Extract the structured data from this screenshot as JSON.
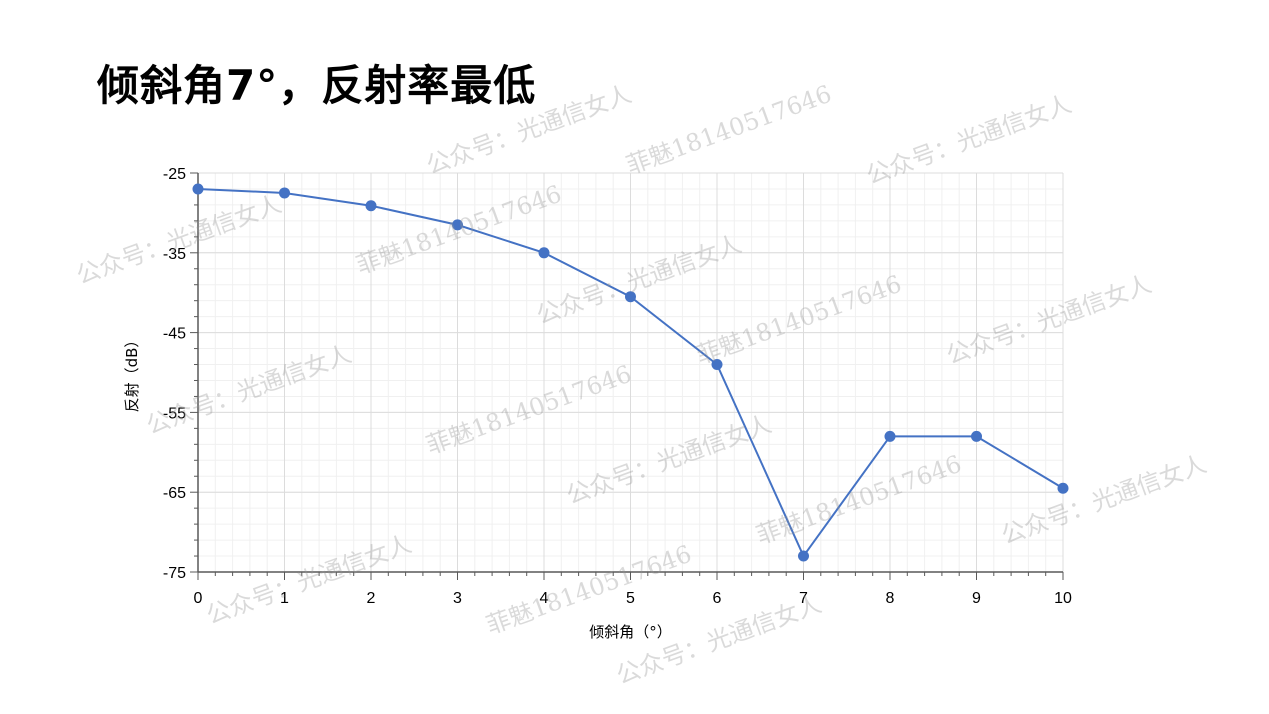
{
  "slide": {
    "title": "倾斜角7°，反射率最低"
  },
  "watermarks": [
    "公众号：光通信女人",
    "菲魅18140517646"
  ],
  "chart_data": {
    "type": "line",
    "title": "",
    "xlabel": "倾斜角（°）",
    "ylabel": "反射（dB）",
    "xlim": [
      0,
      10
    ],
    "ylim": [
      -75,
      -25
    ],
    "xticks": [
      0,
      1,
      2,
      3,
      4,
      5,
      6,
      7,
      8,
      9,
      10
    ],
    "yticks": [
      -25,
      -35,
      -45,
      -55,
      -65,
      -75
    ],
    "grid": true,
    "color": "#4472C4",
    "x": [
      0,
      1,
      2,
      3,
      4,
      5,
      6,
      7,
      8,
      9,
      10
    ],
    "y": [
      -27,
      -27.5,
      -29.1,
      -31.5,
      -35,
      -40.5,
      -49,
      -73,
      -58,
      -58,
      -64.5
    ]
  }
}
